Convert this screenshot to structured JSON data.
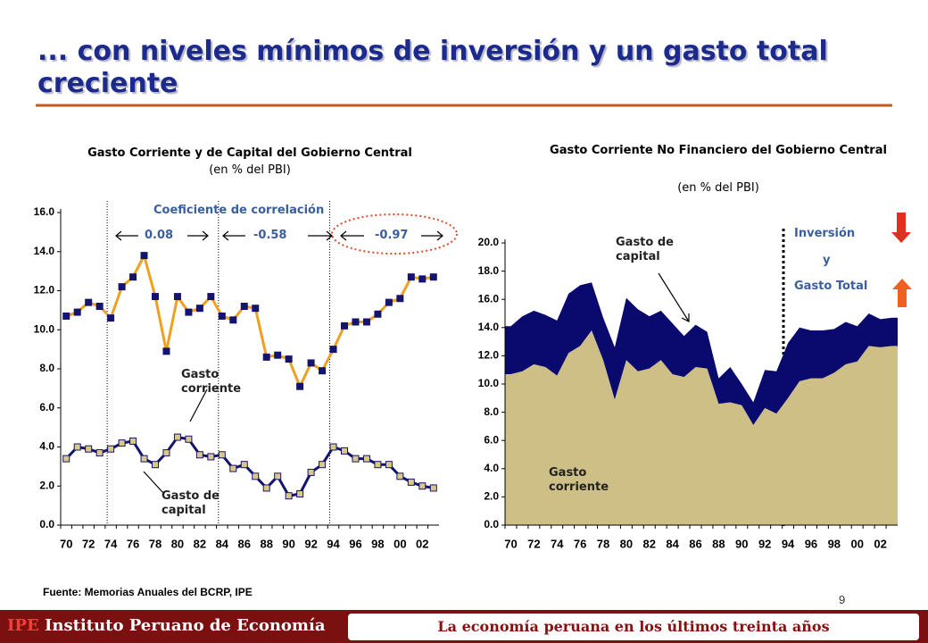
{
  "slide": {
    "title": "... con niveles mínimos de inversión y un gasto total creciente",
    "source": "Fuente: Memorias Anuales del BCRP, IPE",
    "page_number": "9",
    "footer_brand": "IPE",
    "footer_left": "Instituto Peruano de Economía",
    "footer_right": "La economía peruana en los últimos treinta años"
  },
  "chart_data": [
    {
      "type": "line",
      "title": "Gasto Corriente y de Capital del Gobierno Central",
      "subtitle": "(en % del PBI)",
      "categories": [
        "70",
        null,
        "72",
        null,
        "74",
        null,
        "76",
        null,
        "78",
        null,
        "80",
        null,
        "82",
        null,
        "84",
        null,
        "86",
        null,
        "88",
        null,
        "90",
        null,
        "92",
        null,
        "94",
        null,
        "96",
        null,
        "98",
        null,
        "00",
        null,
        "02",
        null
      ],
      "series": [
        {
          "name": "Gasto corriente",
          "color": "#f0a020",
          "marker_color": "#14146e",
          "values": [
            10.7,
            10.9,
            11.4,
            11.2,
            10.6,
            12.2,
            12.7,
            13.8,
            11.7,
            8.9,
            11.7,
            10.9,
            11.1,
            11.7,
            10.7,
            10.5,
            11.2,
            11.1,
            8.6,
            8.7,
            8.5,
            7.1,
            8.3,
            7.9,
            9.0,
            10.2,
            10.4,
            10.4,
            10.8,
            11.4,
            11.6,
            12.7,
            12.6,
            12.7
          ]
        },
        {
          "name": "Gasto de capital",
          "color": "#14146e",
          "marker_color": "#d8c88a",
          "values": [
            3.4,
            4.0,
            3.9,
            3.7,
            3.9,
            4.2,
            4.3,
            3.4,
            3.1,
            3.7,
            4.5,
            4.4,
            3.6,
            3.5,
            3.6,
            2.9,
            3.1,
            2.5,
            1.9,
            2.5,
            1.5,
            1.6,
            2.7,
            3.1,
            4.0,
            3.8,
            3.4,
            3.4,
            3.1,
            3.1,
            2.5,
            2.2,
            2.0,
            1.9
          ]
        }
      ],
      "ylim": [
        0,
        16
      ],
      "yticks": [
        {
          "value": 0,
          "label": "0.0"
        },
        {
          "value": 2,
          "label": "2.0"
        },
        {
          "value": 4,
          "label": "4.0"
        },
        {
          "value": 6,
          "label": "6.0"
        },
        {
          "value": 8,
          "label": "8.0"
        },
        {
          "value": 10,
          "label": "10.0"
        },
        {
          "value": 12,
          "label": "12.0"
        },
        {
          "value": 14,
          "label": "14.0"
        },
        {
          "value": 16,
          "label": "16.0"
        }
      ],
      "correlation_title": "Coeficiente de correlación",
      "correlations": [
        0.08,
        -0.58,
        -0.97
      ]
    },
    {
      "type": "stacked_area",
      "title": "Gasto Corriente No Financiero del Gobierno Central",
      "subtitle": "(en % del PBI)",
      "categories": [
        "70",
        null,
        "72",
        null,
        "74",
        null,
        "76",
        null,
        "78",
        null,
        "80",
        null,
        "82",
        null,
        "84",
        null,
        "86",
        null,
        "88",
        null,
        "90",
        null,
        "92",
        null,
        "94",
        null,
        "96",
        null,
        "98",
        null,
        "00",
        null,
        "02",
        null
      ],
      "series": [
        {
          "name": "Gasto corriente",
          "color": "#cdbf86",
          "values": [
            10.7,
            10.9,
            11.4,
            11.2,
            10.6,
            12.2,
            12.7,
            13.8,
            11.7,
            8.9,
            11.7,
            10.9,
            11.1,
            11.7,
            10.7,
            10.5,
            11.2,
            11.1,
            8.6,
            8.7,
            8.5,
            7.1,
            8.3,
            7.9,
            9.0,
            10.2,
            10.4,
            10.4,
            10.8,
            11.4,
            11.6,
            12.7,
            12.6,
            12.7
          ]
        },
        {
          "name": "Gasto de capital",
          "color": "#0a0a6e",
          "values": [
            3.4,
            3.9,
            3.8,
            3.7,
            3.9,
            4.2,
            4.3,
            3.4,
            3.0,
            3.7,
            4.4,
            4.4,
            3.7,
            3.5,
            3.6,
            2.9,
            3.0,
            2.6,
            1.8,
            2.5,
            1.5,
            1.6,
            2.7,
            3.0,
            3.9,
            3.8,
            3.4,
            3.4,
            3.1,
            3.0,
            2.5,
            2.3,
            2.0,
            2.0
          ]
        }
      ],
      "ylim": [
        0,
        20
      ],
      "yticks": [
        {
          "value": 0,
          "label": "0.0"
        },
        {
          "value": 2,
          "label": "2.0"
        },
        {
          "value": 4,
          "label": "4.0"
        },
        {
          "value": 6,
          "label": "6.0"
        },
        {
          "value": 8,
          "label": "8.0"
        },
        {
          "value": 10,
          "label": "10.0"
        },
        {
          "value": 12,
          "label": "12.0"
        },
        {
          "value": 14,
          "label": "14.0"
        },
        {
          "value": 16,
          "label": "16.0"
        },
        {
          "value": 18,
          "label": "18.0"
        },
        {
          "value": 20,
          "label": "20.0"
        }
      ],
      "side_labels": [
        "Inversión",
        "y",
        "Gasto Total"
      ]
    }
  ]
}
